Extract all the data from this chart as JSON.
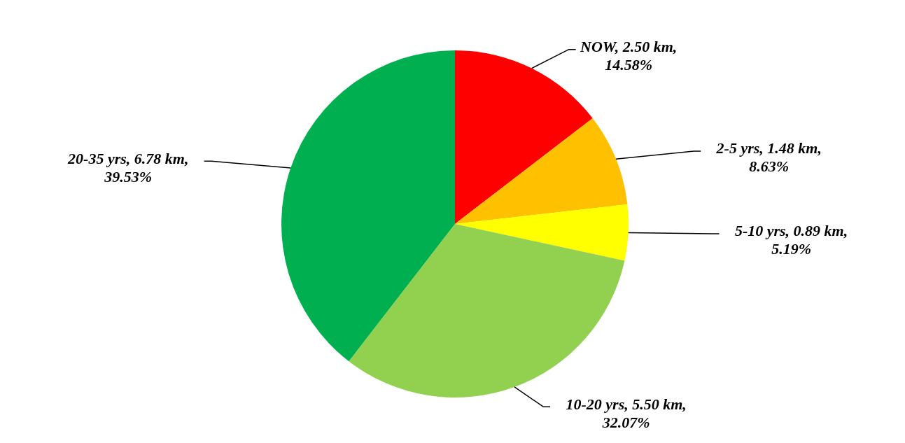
{
  "chart_data": {
    "type": "pie",
    "categories": [
      "NOW",
      "2-5 yrs",
      "5-10 yrs",
      "10-20 yrs",
      "20-35 yrs"
    ],
    "values": [
      2.5,
      1.48,
      0.89,
      5.5,
      6.78
    ],
    "value_labels": [
      "2.50 km, 14.58%",
      "1.48 km, 8.63%",
      "0.89 km, 5.19%",
      "5.50 km, 32.07%",
      "6.78 km, 39.53%"
    ],
    "colors": [
      "#ff0000",
      "#ffc000",
      "#ffff00",
      "#92d050",
      "#00b050"
    ]
  }
}
